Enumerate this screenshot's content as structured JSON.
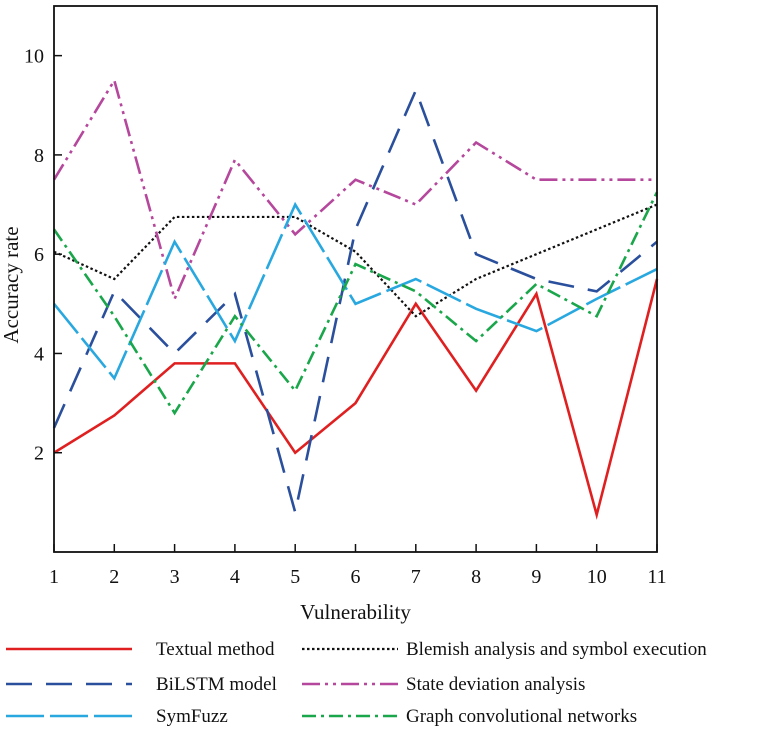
{
  "chart_data": {
    "type": "line",
    "title": "",
    "xlabel": "Vulnerability",
    "ylabel": "Accuracy rate",
    "x": [
      1,
      2,
      3,
      4,
      5,
      6,
      7,
      8,
      9,
      10,
      11
    ],
    "xlim": [
      1,
      11
    ],
    "ylim": [
      0,
      11
    ],
    "yticks": [
      2,
      4,
      6,
      8,
      10
    ],
    "grid": false,
    "legend_position": "bottom",
    "series": [
      {
        "name": "Textual method",
        "color": "#e02020",
        "dash": "solid",
        "values": [
          2.0,
          2.75,
          3.8,
          3.8,
          2.0,
          3.0,
          5.0,
          3.25,
          5.2,
          0.75,
          5.5
        ]
      },
      {
        "name": "Blemish analysis and symbol execution",
        "color": "#111111",
        "dash": "dotted",
        "values": [
          6.05,
          5.5,
          6.75,
          6.75,
          6.75,
          6.05,
          4.75,
          5.5,
          6.0,
          6.5,
          7.0
        ]
      },
      {
        "name": "BiLSTM model",
        "color": "#2a4f9c",
        "dash": "long-dash",
        "values": [
          2.5,
          5.25,
          4.0,
          5.2,
          0.8,
          6.5,
          9.3,
          6.0,
          5.5,
          5.25,
          6.25
        ]
      },
      {
        "name": "State deviation analysis",
        "color": "#b5479c",
        "dash": "dash-dot-dot",
        "values": [
          7.5,
          9.5,
          5.1,
          7.9,
          6.4,
          7.5,
          7.0,
          8.25,
          7.5,
          7.5,
          7.5
        ]
      },
      {
        "name": "SymFuzz",
        "color": "#29a8e0",
        "dash": "long-dash-short-gap",
        "values": [
          5.0,
          3.5,
          6.25,
          4.25,
          7.0,
          5.0,
          5.5,
          4.9,
          4.45,
          5.1,
          5.7
        ]
      },
      {
        "name": "Graph convolutional networks",
        "color": "#1aa64a",
        "dash": "dash-dot",
        "values": [
          6.5,
          4.75,
          2.8,
          4.75,
          3.25,
          5.8,
          5.25,
          4.25,
          5.4,
          4.75,
          7.25
        ]
      }
    ]
  }
}
